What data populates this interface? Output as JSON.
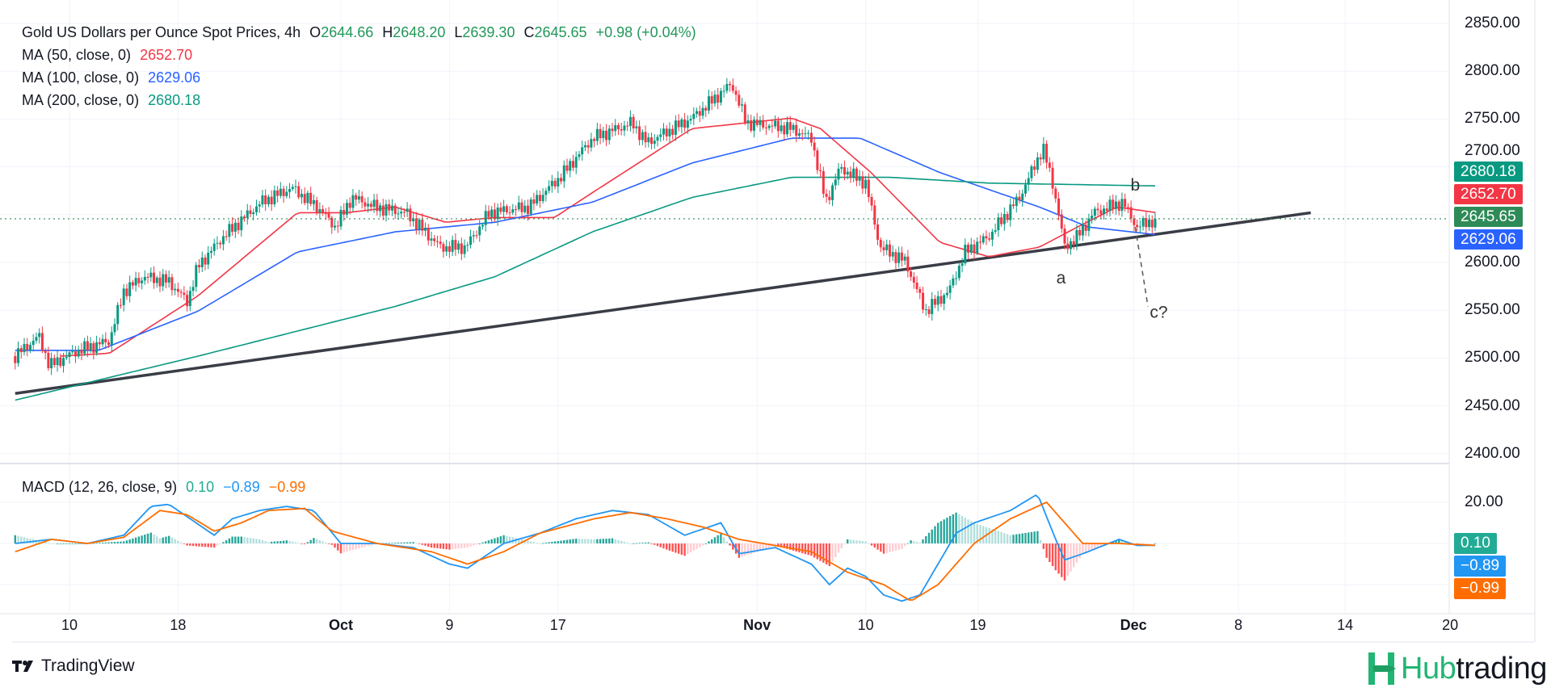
{
  "header": {
    "title": "Gold US Dollars per Ounce Spot Prices, 4h",
    "open_label": "O",
    "open": "2644.66",
    "high_label": "H",
    "high": "2648.20",
    "low_label": "L",
    "low": "2639.30",
    "close_label": "C",
    "close": "2645.65",
    "change": "+0.98 (+0.04%)"
  },
  "indicators": [
    {
      "label": "MA (50, close, 0)",
      "value": "2652.70",
      "color": "#F23645"
    },
    {
      "label": "MA (100, close, 0)",
      "value": "2629.06",
      "color": "#2962FF"
    },
    {
      "label": "MA (200, close, 0)",
      "value": "2680.18",
      "color": "#089981"
    }
  ],
  "macd": {
    "label": "MACD (12, 26, close, 9)",
    "hist_value": "0.10",
    "macd_value": "−0.89",
    "signal_value": "−0.99",
    "colors": {
      "hist": "#22AB94",
      "macd": "#2196F3",
      "signal": "#FF6D00"
    }
  },
  "price_tags": [
    {
      "value": "2680.18",
      "color": "#089981"
    },
    {
      "value": "2652.70",
      "color": "#F23645"
    },
    {
      "value": "2645.65",
      "color": "#2E8B57"
    },
    {
      "value": "2629.06",
      "color": "#2962FF"
    }
  ],
  "footer": {
    "tradingview": "TradingView",
    "brand_a": "Hub",
    "brand_b": "trading"
  },
  "chart_data": {
    "type": "candlestick",
    "title": "Gold US Dollars per Ounce Spot Prices, 4h",
    "x_unit": "trading days since Sep 10",
    "y_ticks": [
      2400,
      2450,
      2500,
      2550,
      2600,
      2650,
      2700,
      2750,
      2800,
      2850
    ],
    "y_tick_labels": [
      "2400.00",
      "2450.00",
      "2500.00",
      "2550.00",
      "2600.00",
      "2650.00",
      "2700.00",
      "2750.00",
      "2800.00",
      "2850.00"
    ],
    "ylim": [
      2400,
      2850
    ],
    "x_ticks": [
      {
        "label": "10",
        "x": 0,
        "bold": false
      },
      {
        "label": "18",
        "x": 6,
        "bold": false
      },
      {
        "label": "Oct",
        "x": 15,
        "bold": true
      },
      {
        "label": "9",
        "x": 21,
        "bold": false
      },
      {
        "label": "17",
        "x": 27,
        "bold": false
      },
      {
        "label": "Nov",
        "x": 38,
        "bold": true
      },
      {
        "label": "10",
        "x": 44,
        "bold": false
      },
      {
        "label": "19",
        "x": 50.2,
        "bold": false
      },
      {
        "label": "Dec",
        "x": 58.8,
        "bold": true
      },
      {
        "label": "8",
        "x": 64.6,
        "bold": false
      },
      {
        "label": "14",
        "x": 70.5,
        "bold": false
      },
      {
        "label": "20",
        "x": 76.3,
        "bold": false
      }
    ],
    "last_price": 2645.65,
    "price_path": [
      [
        -3,
        2502
      ],
      [
        -1.7,
        2523
      ],
      [
        -1.1,
        2492
      ],
      [
        0.5,
        2508
      ],
      [
        2.2,
        2518
      ],
      [
        3,
        2570
      ],
      [
        4.1,
        2585
      ],
      [
        5.5,
        2580
      ],
      [
        6.5,
        2559
      ],
      [
        7.1,
        2596
      ],
      [
        8.5,
        2627
      ],
      [
        10.6,
        2663
      ],
      [
        12.3,
        2678
      ],
      [
        13.7,
        2658
      ],
      [
        14.7,
        2637
      ],
      [
        15.6,
        2668
      ],
      [
        16.9,
        2658
      ],
      [
        18.6,
        2652
      ],
      [
        20.5,
        2616
      ],
      [
        21.9,
        2616
      ],
      [
        23.2,
        2652
      ],
      [
        25.4,
        2658
      ],
      [
        27.1,
        2689
      ],
      [
        28.9,
        2730
      ],
      [
        31.1,
        2746
      ],
      [
        31.9,
        2725
      ],
      [
        34.4,
        2751
      ],
      [
        36.6,
        2787
      ],
      [
        37.4,
        2746
      ],
      [
        39.9,
        2740
      ],
      [
        41,
        2730
      ],
      [
        41.8,
        2663
      ],
      [
        42.6,
        2699
      ],
      [
        44,
        2683
      ],
      [
        44.8,
        2616
      ],
      [
        46.2,
        2601
      ],
      [
        47.3,
        2549
      ],
      [
        48.6,
        2570
      ],
      [
        49.5,
        2611
      ],
      [
        50.8,
        2627
      ],
      [
        52.5,
        2668
      ],
      [
        53.8,
        2720
      ],
      [
        54.4,
        2678
      ],
      [
        55,
        2616
      ],
      [
        55.7,
        2627
      ],
      [
        56.6,
        2652
      ],
      [
        58.2,
        2663
      ],
      [
        59,
        2637
      ],
      [
        60.1,
        2646
      ]
    ],
    "series": [
      {
        "name": "MA 50",
        "color": "#F23645",
        "points": [
          [
            -0.5,
            2502
          ],
          [
            2.2,
            2505
          ],
          [
            7.1,
            2565
          ],
          [
            12.6,
            2652
          ],
          [
            15.3,
            2652
          ],
          [
            18,
            2658
          ],
          [
            20.8,
            2642
          ],
          [
            23.5,
            2647
          ],
          [
            26.8,
            2647
          ],
          [
            28.9,
            2673
          ],
          [
            34.4,
            2740
          ],
          [
            39.9,
            2751
          ],
          [
            41.5,
            2740
          ],
          [
            44.3,
            2694
          ],
          [
            48.1,
            2621
          ],
          [
            50.8,
            2606
          ],
          [
            53.6,
            2616
          ],
          [
            55.7,
            2637
          ],
          [
            57.9,
            2658
          ],
          [
            60.1,
            2652
          ]
        ]
      },
      {
        "name": "MA 100",
        "color": "#2962FF",
        "points": [
          [
            -3,
            2508
          ],
          [
            1.6,
            2508
          ],
          [
            7.1,
            2549
          ],
          [
            12.6,
            2611
          ],
          [
            18,
            2632
          ],
          [
            23.5,
            2642
          ],
          [
            28.9,
            2663
          ],
          [
            34.4,
            2704
          ],
          [
            39.9,
            2730
          ],
          [
            43.7,
            2730
          ],
          [
            48.1,
            2694
          ],
          [
            53.6,
            2658
          ],
          [
            56.3,
            2637
          ],
          [
            60.1,
            2629
          ]
        ]
      },
      {
        "name": "MA 200",
        "color": "#089981",
        "points": [
          [
            -3,
            2456
          ],
          [
            7.1,
            2502
          ],
          [
            18,
            2554
          ],
          [
            23.5,
            2585
          ],
          [
            28.9,
            2632
          ],
          [
            34.4,
            2668
          ],
          [
            39.9,
            2689
          ],
          [
            45.4,
            2689
          ],
          [
            50.8,
            2683
          ],
          [
            60.1,
            2680
          ]
        ]
      }
    ],
    "trendline": [
      [
        -3,
        2463
      ],
      [
        68.6,
        2652
      ]
    ],
    "projection": [
      [
        58.9,
        2637
      ],
      [
        59.6,
        2554
      ]
    ],
    "annotations": [
      {
        "text": "a",
        "x": 54.8,
        "y": 2578
      },
      {
        "text": "b",
        "x": 58.9,
        "y": 2675
      },
      {
        "text": "c?",
        "x": 60.2,
        "y": 2542
      }
    ],
    "macd_ticks": [
      {
        "label": "20.00",
        "value": 20
      }
    ],
    "macd_line": [
      [
        -3,
        0
      ],
      [
        -1,
        2
      ],
      [
        1,
        0
      ],
      [
        3,
        4
      ],
      [
        4.5,
        18
      ],
      [
        5.5,
        19
      ],
      [
        7,
        10
      ],
      [
        8,
        4
      ],
      [
        9,
        12
      ],
      [
        10.5,
        16
      ],
      [
        12,
        18
      ],
      [
        13.5,
        16
      ],
      [
        15,
        0
      ],
      [
        17,
        0
      ],
      [
        19,
        -2
      ],
      [
        21,
        -10
      ],
      [
        22,
        -12
      ],
      [
        24,
        0
      ],
      [
        26,
        5
      ],
      [
        28,
        12
      ],
      [
        30,
        16
      ],
      [
        32,
        14
      ],
      [
        34,
        4
      ],
      [
        36,
        10
      ],
      [
        37,
        -5
      ],
      [
        39,
        -2
      ],
      [
        41,
        -10
      ],
      [
        42,
        -20
      ],
      [
        43,
        -12
      ],
      [
        44,
        -16
      ],
      [
        45,
        -25
      ],
      [
        46,
        -28
      ],
      [
        47,
        -25
      ],
      [
        48,
        -10
      ],
      [
        49,
        5
      ],
      [
        50,
        10
      ],
      [
        52,
        16
      ],
      [
        53.5,
        24
      ],
      [
        54.5,
        2
      ],
      [
        55,
        -8
      ],
      [
        56,
        -5
      ],
      [
        58,
        2
      ],
      [
        59,
        -1
      ],
      [
        60.1,
        -0.89
      ]
    ],
    "signal_line": [
      [
        -3,
        -4
      ],
      [
        -1,
        2
      ],
      [
        1,
        0
      ],
      [
        3,
        3
      ],
      [
        5,
        16
      ],
      [
        6.5,
        14
      ],
      [
        8,
        6
      ],
      [
        9.5,
        10
      ],
      [
        11,
        16
      ],
      [
        13,
        17
      ],
      [
        14.5,
        6
      ],
      [
        17,
        0
      ],
      [
        20,
        -4
      ],
      [
        22,
        -10
      ],
      [
        24,
        -4
      ],
      [
        26,
        5
      ],
      [
        29,
        12
      ],
      [
        31,
        15
      ],
      [
        33,
        12
      ],
      [
        35,
        8
      ],
      [
        37,
        2
      ],
      [
        39,
        -1
      ],
      [
        41,
        -4
      ],
      [
        43,
        -14
      ],
      [
        45,
        -20
      ],
      [
        46.5,
        -28
      ],
      [
        48,
        -20
      ],
      [
        50,
        0
      ],
      [
        52,
        12
      ],
      [
        54,
        20
      ],
      [
        55,
        10
      ],
      [
        56,
        0
      ],
      [
        58,
        0
      ],
      [
        60.1,
        -0.99
      ]
    ]
  }
}
